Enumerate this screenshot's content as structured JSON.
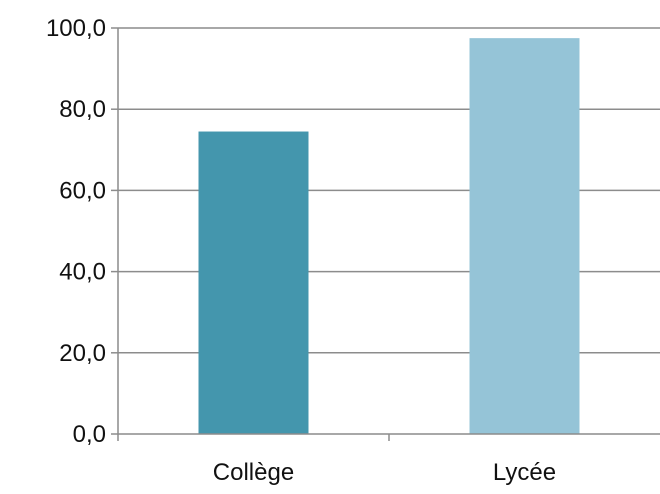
{
  "chart_data": {
    "type": "bar",
    "categories": [
      "Collège",
      "Lycée"
    ],
    "values": [
      74.5,
      97.5
    ],
    "colors": [
      "#4496ad",
      "#95c4d7"
    ],
    "ylim": [
      0,
      100
    ],
    "yticks": [
      0,
      20,
      40,
      60,
      80,
      100
    ],
    "ytick_labels": [
      "0,0",
      "20,0",
      "40,0",
      "60,0",
      "80,0",
      "100,0"
    ],
    "grid": true,
    "title": "",
    "xlabel": "",
    "ylabel": ""
  }
}
